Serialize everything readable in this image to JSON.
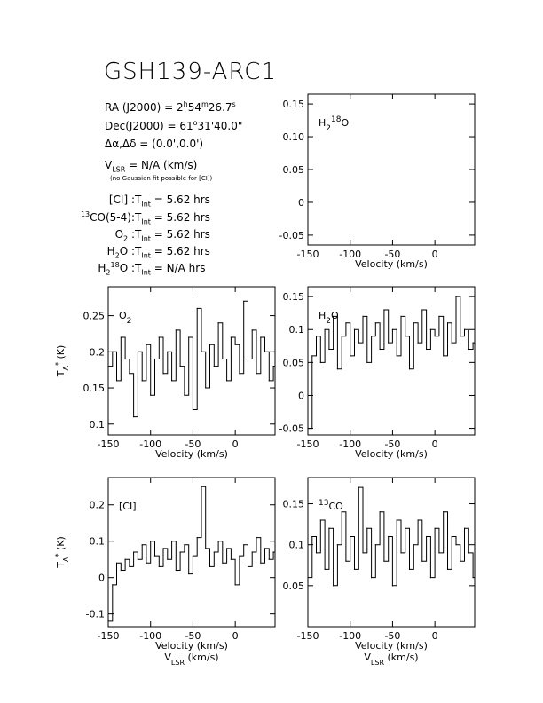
{
  "header": {
    "title": "GSH139-ARC1",
    "ra": {
      "prefix": "RA (J2000) = ",
      "h": "2",
      "hs": "h",
      "m": "54",
      "ms": "m",
      "s": "26.7",
      "ss": "s"
    },
    "dec": {
      "prefix": "Dec(J2000) = ",
      "d": "61",
      "ds": "o",
      "rest": "31'40.0\""
    },
    "offset": "Δα,Δδ = (0.0',0.0')",
    "vlsr": {
      "v": "V",
      "sub": "LSR",
      "rest": " = N/A  (km/s)"
    },
    "note": "(no Gaussian fit possible for [CI])",
    "integrations": [
      {
        "pre": "",
        "presup": "",
        "name": "[CI] : ",
        "val": "5.62 hrs"
      },
      {
        "pre": "",
        "presup": "13",
        "name": "CO(5-4): ",
        "val": "5.62 hrs"
      },
      {
        "pre": "",
        "presup": "",
        "name": "O",
        "namesub": "2",
        "name2": " : ",
        "val": "5.62 hrs"
      },
      {
        "pre": "",
        "presup": "",
        "name": "H",
        "namesub": "2",
        "name2": "O : ",
        "val": "5.62 hrs"
      },
      {
        "pre": "",
        "presup": "",
        "name": "H",
        "namesub": "2",
        "sup": "18",
        "name2": "O : ",
        "val": "N/A  hrs"
      }
    ],
    "tint": {
      "t": "T",
      "sub": "Int",
      "eq": " = "
    }
  },
  "chart_data": [
    {
      "type": "line",
      "panel": "h218o",
      "label": "H218O",
      "xlabel": "Velocity (km/s)",
      "ylabel": "",
      "xlim": [
        -150,
        47
      ],
      "ylim": [
        -0.065,
        0.165
      ],
      "xticks": [
        -150,
        -100,
        -50,
        0
      ],
      "yticks": [
        -0.05,
        0,
        0.05,
        0.1,
        0.15
      ],
      "ytick_labels": [
        "-0.05",
        "0",
        "0.05",
        "0.10",
        "0.15"
      ],
      "series": []
    },
    {
      "type": "line",
      "panel": "o2",
      "label": "O2",
      "xlabel": "Velocity (km/s)",
      "ylabel": "T*A (K)",
      "xlim": [
        -150,
        47
      ],
      "ylim": [
        0.085,
        0.29
      ],
      "xticks": [
        -150,
        -100,
        -50,
        0
      ],
      "yticks": [
        0.1,
        0.15,
        0.2,
        0.25
      ],
      "ytick_labels": [
        "0.1",
        "0.15",
        "0.2",
        "0.25"
      ],
      "series": [
        {
          "x": [
            -150,
            -145,
            -140,
            -135,
            -130,
            -125,
            -120,
            -115,
            -110,
            -105,
            -100,
            -95,
            -90,
            -85,
            -80,
            -75,
            -70,
            -65,
            -60,
            -55,
            -50,
            -45,
            -40,
            -35,
            -30,
            -25,
            -20,
            -15,
            -10,
            -5,
            0,
            5,
            10,
            15,
            20,
            25,
            30,
            35,
            40,
            45
          ],
          "y": [
            0.18,
            0.2,
            0.16,
            0.22,
            0.19,
            0.17,
            0.11,
            0.2,
            0.16,
            0.21,
            0.14,
            0.19,
            0.22,
            0.17,
            0.2,
            0.16,
            0.23,
            0.18,
            0.14,
            0.22,
            0.12,
            0.26,
            0.2,
            0.15,
            0.21,
            0.18,
            0.24,
            0.19,
            0.16,
            0.22,
            0.21,
            0.17,
            0.27,
            0.19,
            0.23,
            0.17,
            0.22,
            0.2,
            0.16,
            0.18
          ]
        }
      ]
    },
    {
      "type": "line",
      "panel": "h2o",
      "label": "H2O",
      "xlabel": "Velocity (km/s)",
      "ylabel": "",
      "xlim": [
        -150,
        47
      ],
      "ylim": [
        -0.06,
        0.165
      ],
      "xticks": [
        -150,
        -100,
        -50,
        0
      ],
      "yticks": [
        -0.05,
        0,
        0.05,
        0.1,
        0.15
      ],
      "ytick_labels": [
        "-0.05",
        "0",
        "0.05",
        "0.1",
        "0.15"
      ],
      "series": [
        {
          "x": [
            -150,
            -145,
            -140,
            -135,
            -130,
            -125,
            -120,
            -115,
            -110,
            -105,
            -100,
            -95,
            -90,
            -85,
            -80,
            -75,
            -70,
            -65,
            -60,
            -55,
            -50,
            -45,
            -40,
            -35,
            -30,
            -25,
            -20,
            -15,
            -10,
            -5,
            0,
            5,
            10,
            15,
            20,
            25,
            30,
            35,
            40,
            45
          ],
          "y": [
            -0.05,
            0.06,
            0.09,
            0.05,
            0.1,
            0.07,
            0.12,
            0.04,
            0.09,
            0.11,
            0.06,
            0.1,
            0.08,
            0.12,
            0.05,
            0.09,
            0.11,
            0.07,
            0.13,
            0.08,
            0.1,
            0.06,
            0.12,
            0.09,
            0.04,
            0.11,
            0.08,
            0.13,
            0.07,
            0.1,
            0.09,
            0.12,
            0.06,
            0.11,
            0.08,
            0.15,
            0.09,
            0.1,
            0.07,
            0.08
          ]
        }
      ]
    },
    {
      "type": "line",
      "panel": "ci",
      "label": "[CI]",
      "xlabel": "Velocity (km/s)",
      "ylabel": "T*A (K)",
      "xlim": [
        -150,
        47
      ],
      "ylim": [
        -0.135,
        0.275
      ],
      "xticks": [
        -150,
        -100,
        -50,
        0
      ],
      "yticks": [
        -0.1,
        0,
        0.1,
        0.2
      ],
      "ytick_labels": [
        "-0.1",
        "0",
        "0.1",
        "0.2"
      ],
      "series": [
        {
          "x": [
            -150,
            -145,
            -140,
            -135,
            -130,
            -125,
            -120,
            -115,
            -110,
            -105,
            -100,
            -95,
            -90,
            -85,
            -80,
            -75,
            -70,
            -65,
            -60,
            -55,
            -50,
            -45,
            -40,
            -35,
            -30,
            -25,
            -20,
            -15,
            -10,
            -5,
            0,
            5,
            10,
            15,
            20,
            25,
            30,
            35,
            40,
            45
          ],
          "y": [
            -0.12,
            -0.02,
            0.04,
            0.02,
            0.05,
            0.03,
            0.07,
            0.05,
            0.09,
            0.04,
            0.1,
            0.06,
            0.03,
            0.08,
            0.05,
            0.1,
            0.02,
            0.07,
            0.09,
            0.01,
            0.06,
            0.11,
            0.25,
            0.08,
            0.03,
            0.07,
            0.1,
            0.04,
            0.08,
            0.05,
            -0.02,
            0.06,
            0.09,
            0.03,
            0.07,
            0.11,
            0.04,
            0.08,
            0.05,
            0.07
          ]
        }
      ]
    },
    {
      "type": "line",
      "panel": "13co",
      "label": "13CO",
      "xlabel": "Velocity (km/s)",
      "ylabel": "",
      "xlim": [
        -150,
        47
      ],
      "ylim": [
        0.0,
        0.182
      ],
      "xticks": [
        -150,
        -100,
        -50,
        0
      ],
      "yticks": [
        0.05,
        0.1,
        0.15
      ],
      "ytick_labels": [
        "0.05",
        "0.1",
        "0.15"
      ],
      "series": [
        {
          "x": [
            -150,
            -145,
            -140,
            -135,
            -130,
            -125,
            -120,
            -115,
            -110,
            -105,
            -100,
            -95,
            -90,
            -85,
            -80,
            -75,
            -70,
            -65,
            -60,
            -55,
            -50,
            -45,
            -40,
            -35,
            -30,
            -25,
            -20,
            -15,
            -10,
            -5,
            0,
            5,
            10,
            15,
            20,
            25,
            30,
            35,
            40,
            45
          ],
          "y": [
            0.06,
            0.11,
            0.09,
            0.13,
            0.07,
            0.12,
            0.05,
            0.1,
            0.14,
            0.08,
            0.11,
            0.07,
            0.17,
            0.09,
            0.12,
            0.06,
            0.1,
            0.14,
            0.08,
            0.11,
            0.05,
            0.13,
            0.09,
            0.12,
            0.07,
            0.1,
            0.13,
            0.08,
            0.11,
            0.06,
            0.12,
            0.09,
            0.14,
            0.07,
            0.11,
            0.1,
            0.08,
            0.12,
            0.09,
            0.06
          ]
        }
      ]
    }
  ],
  "bottom_labels": {
    "v": "V",
    "sub": "LSR",
    "rest": " (km/s)"
  }
}
